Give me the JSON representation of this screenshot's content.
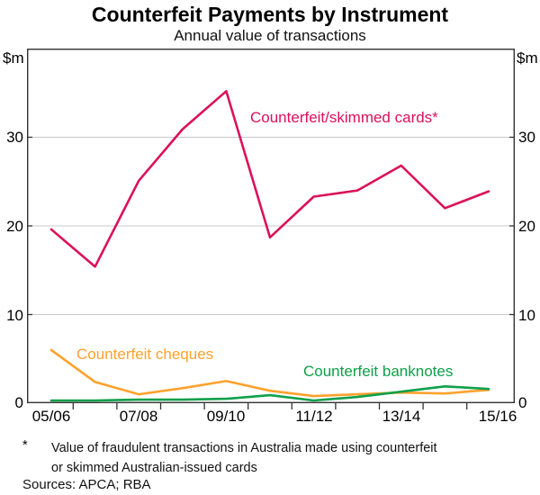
{
  "header": {
    "title": "Counterfeit Payments by Instrument",
    "subtitle": "Annual value of transactions"
  },
  "chart_data": {
    "type": "line",
    "unit": "$m",
    "x": [
      "05/06",
      "06/07",
      "07/08",
      "08/09",
      "09/10",
      "10/11",
      "11/12",
      "12/13",
      "13/14",
      "14/15",
      "15/16"
    ],
    "x_tick_labels": [
      "05/06",
      "07/08",
      "09/10",
      "11/12",
      "13/14",
      "15/16"
    ],
    "ylim": [
      0,
      40
    ],
    "yticks": [
      10,
      20,
      30
    ],
    "ytick_labels": [
      "30",
      "20",
      "10",
      "0"
    ],
    "grid": true,
    "legend_position": "inline-labels",
    "frame_color": "#333333",
    "grid_color": "#c8c8c8",
    "series": [
      {
        "name": "Counterfeit/skimmed cards*",
        "color": "#DB1159",
        "values": [
          19.6,
          15.4,
          25.1,
          30.9,
          35.2,
          18.7,
          23.3,
          24.0,
          26.8,
          22.0,
          23.9
        ]
      },
      {
        "name": "Counterfeit cheques",
        "color": "#FFA12C",
        "values": [
          6.0,
          2.4,
          1.0,
          1.7,
          2.5,
          1.4,
          0.8,
          1.0,
          1.2,
          1.1,
          1.5
        ]
      },
      {
        "name": "Counterfeit banknotes",
        "color": "#0FA04A",
        "values": [
          0.3,
          0.3,
          0.4,
          0.4,
          0.5,
          0.9,
          0.3,
          0.7,
          1.3,
          1.9,
          1.6
        ]
      }
    ]
  },
  "footnote": {
    "marker": "*",
    "line1": "Value of fraudulent transactions in Australia made using counterfeit",
    "line2": "or skimmed Australian-issued cards"
  },
  "sources": "Sources: APCA; RBA"
}
